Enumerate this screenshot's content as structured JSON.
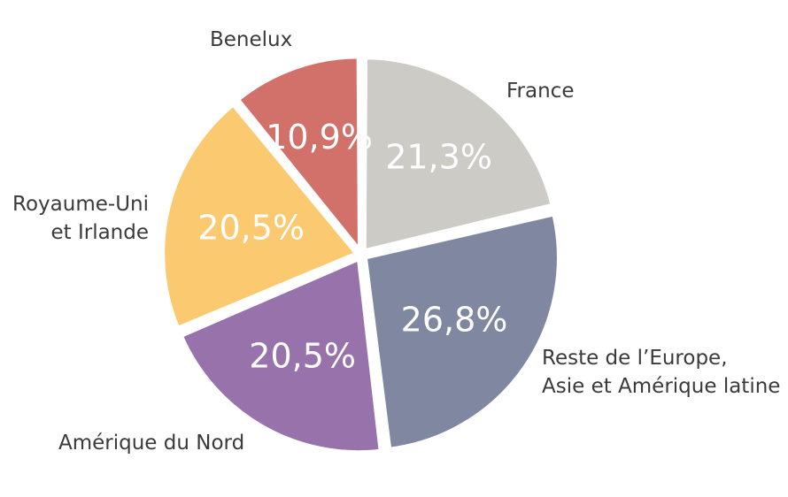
{
  "chart_data": {
    "type": "pie",
    "title": "",
    "slices": [
      {
        "label": [
          "France"
        ],
        "value": 21.3,
        "value_label": "21,3%",
        "color": "#cdcbc6"
      },
      {
        "label": [
          "Reste de l’Europe,",
          "Asie et Amérique latine"
        ],
        "value": 26.8,
        "value_label": "26,8%",
        "color": "#7f87a1"
      },
      {
        "label": [
          "Amérique du Nord"
        ],
        "value": 20.5,
        "value_label": "20,5%",
        "color": "#9872aa"
      },
      {
        "label": [
          "Royaume-Uni",
          "et Irlande"
        ],
        "value": 20.5,
        "value_label": "20,5%",
        "color": "#fbc96f"
      },
      {
        "label": [
          "Benelux"
        ],
        "value": 10.9,
        "value_label": "10,9%",
        "color": "#d2716a"
      }
    ]
  }
}
